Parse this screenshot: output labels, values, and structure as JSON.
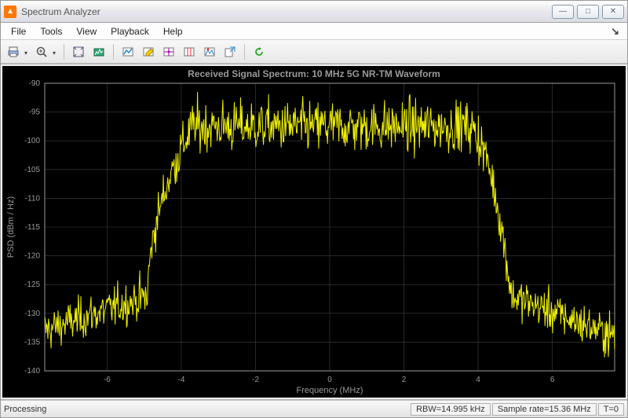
{
  "window": {
    "title": "Spectrum Analyzer",
    "app_icon_letter": "▲"
  },
  "menu": {
    "items": [
      "File",
      "Tools",
      "View",
      "Playback",
      "Help"
    ]
  },
  "toolbar": {
    "buttons": [
      {
        "name": "print-icon",
        "dropdown": true
      },
      {
        "name": "zoom-icon",
        "dropdown": true
      },
      {
        "sep": true
      },
      {
        "name": "autoscale-icon"
      },
      {
        "name": "spectrum-settings-icon"
      },
      {
        "sep": true
      },
      {
        "name": "plot-type-icon"
      },
      {
        "name": "edit-plot-icon"
      },
      {
        "name": "measurements-icon"
      },
      {
        "name": "cursor-icon"
      },
      {
        "name": "peaks-icon"
      },
      {
        "name": "export-icon"
      },
      {
        "sep": true
      },
      {
        "name": "refresh-icon"
      }
    ]
  },
  "chart": {
    "title": "Received Signal Spectrum: 10 MHz 5G NR-TM Waveform",
    "xlabel": "Frequency (MHz)",
    "ylabel": "PSD (dBm / Hz)",
    "title_fontsize": 12,
    "label_fontsize": 11,
    "tick_fontsize": 10,
    "text_color": "#9a9a9a",
    "series_color": "#f0f000",
    "background_color": "#000000",
    "grid_color": "#404040",
    "axis_color": "#9a9a9a",
    "xlim": [
      -7.68,
      7.68
    ],
    "ylim": [
      -140,
      -90
    ],
    "xticks": [
      -6,
      -4,
      -2,
      0,
      2,
      4,
      6
    ],
    "yticks": [
      -140,
      -135,
      -130,
      -125,
      -120,
      -115,
      -110,
      -105,
      -100,
      -95,
      -90
    ],
    "passband_level": -97.5,
    "passband_noise_amp": 2.2,
    "passband_lo": -4.3,
    "passband_hi": 4.3,
    "rolloff_width": 0.6,
    "noise_floor_left_start": -133,
    "noise_floor_left_end": -127,
    "noise_floor_right_start": -127,
    "noise_floor_right_end": -134,
    "floor_noise_amp": 1.8,
    "n_points": 900
  },
  "status": {
    "left": "Processing",
    "rbw": "RBW=14.995 kHz",
    "sample": "Sample rate=15.36 MHz",
    "t": "T=0"
  }
}
